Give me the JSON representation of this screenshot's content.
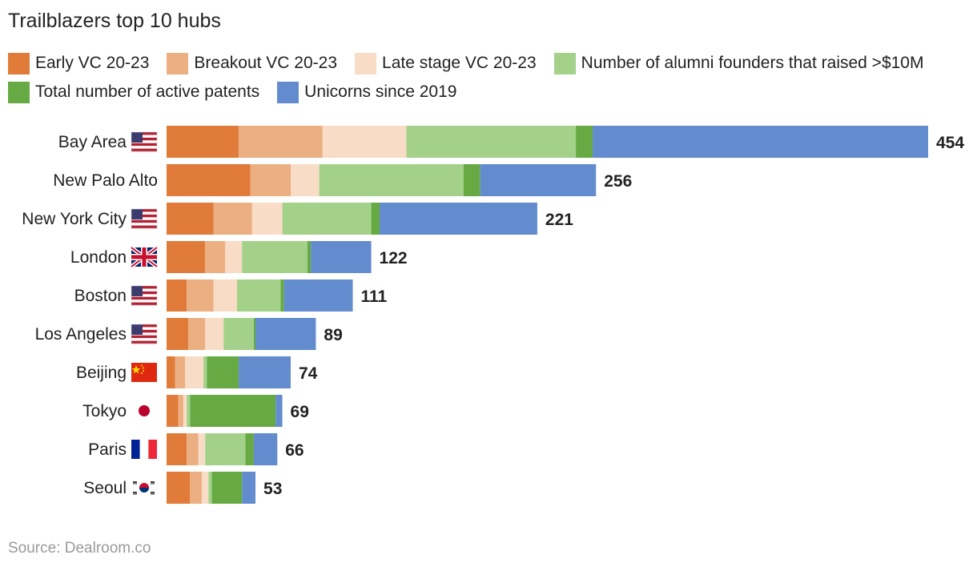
{
  "title": "Trailblazers top 10 hubs",
  "source": "Source: Dealroom.co",
  "chart_data": {
    "type": "bar",
    "orientation": "horizontal",
    "stacked": true,
    "title": "Trailblazers top 10 hubs",
    "legend_position": "top",
    "grid": false,
    "xlim": [
      0,
      454
    ],
    "categories": [
      "Bay Area",
      "New Palo Alto",
      "New York City",
      "London",
      "Boston",
      "Los Angeles",
      "Beijing",
      "Tokyo",
      "Paris",
      "Seoul"
    ],
    "flags": [
      "us",
      "",
      "us",
      "uk",
      "us",
      "us",
      "cn",
      "jp",
      "fr",
      "kr"
    ],
    "totals": [
      454,
      256,
      221,
      122,
      111,
      89,
      74,
      69,
      66,
      53
    ],
    "series": [
      {
        "name": "Early VC 20-23",
        "color": "#e07b39",
        "values": [
          43,
          50,
          28,
          23,
          12,
          13,
          5,
          7,
          12,
          14
        ]
      },
      {
        "name": "Breakout VC 20-23",
        "color": "#ebaf82",
        "values": [
          50,
          24,
          23,
          12,
          16,
          10,
          6,
          3,
          7,
          7
        ]
      },
      {
        "name": "Late stage VC 20-23",
        "color": "#f8dcc6",
        "values": [
          50,
          17,
          18,
          10,
          14,
          11,
          11,
          2,
          4,
          4
        ]
      },
      {
        "name": "Number of alumni founders that raised >$10M",
        "color": "#a3d18a",
        "values": [
          101,
          86,
          53,
          39,
          26,
          18,
          2,
          2,
          24,
          2
        ]
      },
      {
        "name": "Total number of active patents",
        "color": "#67aa44",
        "values": [
          10,
          10,
          5,
          2,
          2,
          1,
          19,
          51,
          5,
          18
        ]
      },
      {
        "name": "Unicorns since 2019",
        "color": "#628cce",
        "values": [
          200,
          69,
          94,
          36,
          41,
          36,
          31,
          4,
          14,
          8
        ]
      }
    ]
  }
}
